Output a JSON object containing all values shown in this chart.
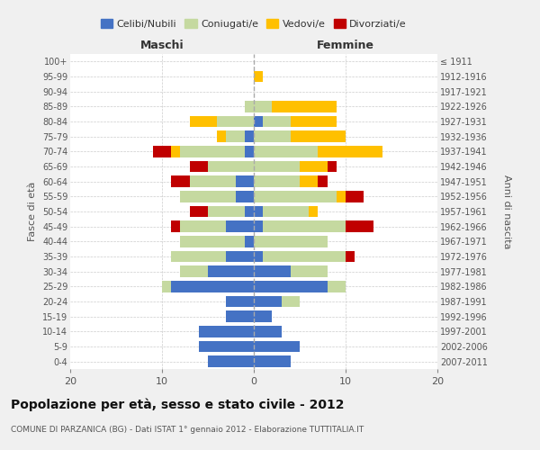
{
  "age_groups": [
    "0-4",
    "5-9",
    "10-14",
    "15-19",
    "20-24",
    "25-29",
    "30-34",
    "35-39",
    "40-44",
    "45-49",
    "50-54",
    "55-59",
    "60-64",
    "65-69",
    "70-74",
    "75-79",
    "80-84",
    "85-89",
    "90-94",
    "95-99",
    "100+"
  ],
  "birth_years": [
    "2007-2011",
    "2002-2006",
    "1997-2001",
    "1992-1996",
    "1987-1991",
    "1982-1986",
    "1977-1981",
    "1972-1976",
    "1967-1971",
    "1962-1966",
    "1957-1961",
    "1952-1956",
    "1947-1951",
    "1942-1946",
    "1937-1941",
    "1932-1936",
    "1927-1931",
    "1922-1926",
    "1917-1921",
    "1912-1916",
    "≤ 1911"
  ],
  "maschi": {
    "celibi": [
      5,
      6,
      6,
      3,
      3,
      9,
      5,
      3,
      1,
      3,
      1,
      2,
      2,
      0,
      1,
      1,
      0,
      0,
      0,
      0,
      0
    ],
    "coniugati": [
      0,
      0,
      0,
      0,
      0,
      1,
      3,
      6,
      7,
      5,
      4,
      6,
      5,
      5,
      7,
      2,
      4,
      1,
      0,
      0,
      0
    ],
    "vedovi": [
      0,
      0,
      0,
      0,
      0,
      0,
      0,
      0,
      0,
      0,
      0,
      0,
      0,
      0,
      1,
      1,
      3,
      0,
      0,
      0,
      0
    ],
    "divorziati": [
      0,
      0,
      0,
      0,
      0,
      0,
      0,
      0,
      0,
      1,
      2,
      0,
      2,
      2,
      2,
      0,
      0,
      0,
      0,
      0,
      0
    ]
  },
  "femmine": {
    "nubili": [
      4,
      5,
      3,
      2,
      3,
      8,
      4,
      1,
      0,
      1,
      1,
      0,
      0,
      0,
      0,
      0,
      1,
      0,
      0,
      0,
      0
    ],
    "coniugate": [
      0,
      0,
      0,
      0,
      2,
      2,
      4,
      9,
      8,
      9,
      5,
      9,
      5,
      5,
      7,
      4,
      3,
      2,
      0,
      0,
      0
    ],
    "vedove": [
      0,
      0,
      0,
      0,
      0,
      0,
      0,
      0,
      0,
      0,
      1,
      1,
      2,
      3,
      7,
      6,
      5,
      7,
      0,
      1,
      0
    ],
    "divorziate": [
      0,
      0,
      0,
      0,
      0,
      0,
      0,
      1,
      0,
      3,
      0,
      2,
      1,
      1,
      0,
      0,
      0,
      0,
      0,
      0,
      0
    ]
  },
  "colors": {
    "celibi_nubili": "#4472c4",
    "coniugati_e": "#c5d9a0",
    "vedovi_e": "#ffc000",
    "divorziati_e": "#c00000"
  },
  "title": "Popolazione per età, sesso e stato civile - 2012",
  "subtitle": "COMUNE DI PARZANICA (BG) - Dati ISTAT 1° gennaio 2012 - Elaborazione TUTTITALIA.IT",
  "xlabel_left": "Maschi",
  "xlabel_right": "Femmine",
  "ylabel_left": "Fasce di età",
  "ylabel_right": "Anni di nascita",
  "xlim": 20,
  "legend_labels": [
    "Celibi/Nubili",
    "Coniugati/e",
    "Vedovi/e",
    "Divorziati/e"
  ],
  "bg_color": "#f0f0f0",
  "plot_bg_color": "#ffffff"
}
